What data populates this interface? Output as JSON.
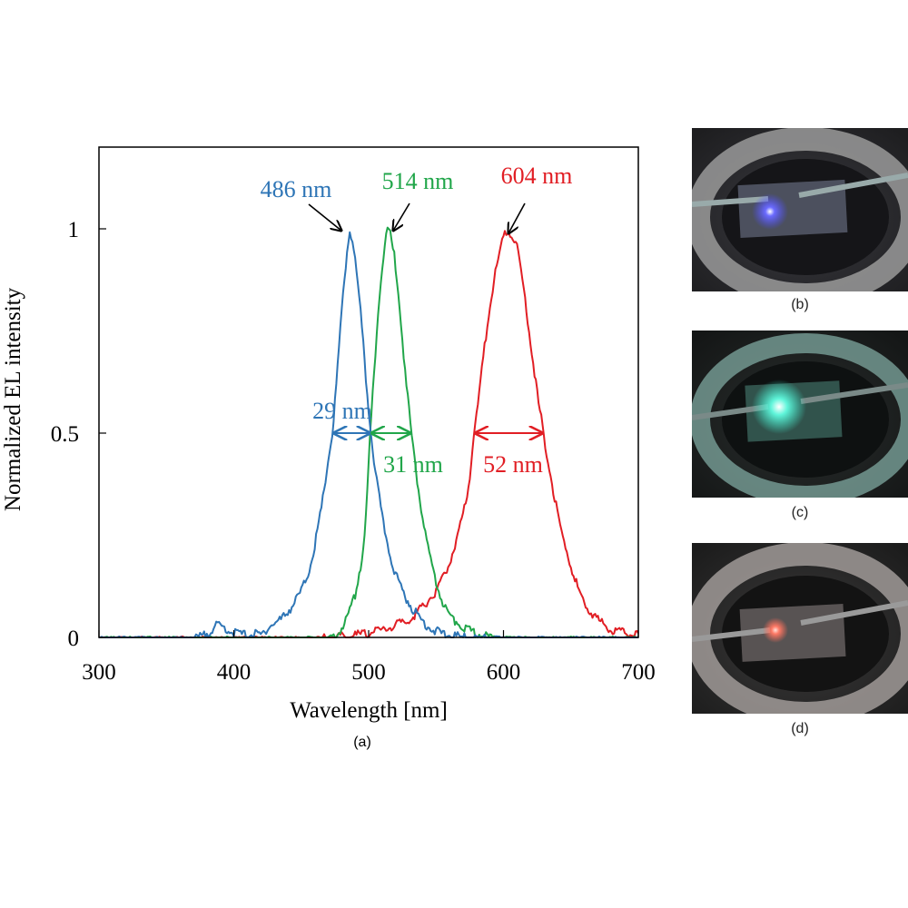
{
  "chart_data": {
    "type": "line",
    "panel_label": "(a)",
    "xlabel": "Wavelength [nm]",
    "ylabel": "Normalized EL intensity",
    "xlim": [
      300,
      700
    ],
    "ylim": [
      0,
      1.2
    ],
    "xticks": [
      {
        "value": 300,
        "label": "300"
      },
      {
        "value": 400,
        "label": "400"
      },
      {
        "value": 500,
        "label": "500"
      },
      {
        "value": 600,
        "label": "600"
      },
      {
        "value": 700,
        "label": "700"
      }
    ],
    "yticks": [
      {
        "value": 0,
        "label": "0"
      },
      {
        "value": 0.5,
        "label": "0.5"
      },
      {
        "value": 1,
        "label": "1"
      }
    ],
    "grid": false,
    "legend": "none",
    "series": [
      {
        "color": "#2e75b6",
        "peak_label": "486 nm",
        "fwhm_label": "29 nm",
        "peak": 486,
        "fwhm": [
          473,
          502
        ],
        "points": [
          [
            300,
            0
          ],
          [
            370,
            0
          ],
          [
            378,
            0.01
          ],
          [
            383,
            0.025
          ],
          [
            388,
            0.035
          ],
          [
            393,
            0.03
          ],
          [
            398,
            0.02
          ],
          [
            405,
            0.015
          ],
          [
            410,
            0.01
          ],
          [
            415,
            0.015
          ],
          [
            420,
            0.01
          ],
          [
            425,
            0.03
          ],
          [
            430,
            0.04
          ],
          [
            435,
            0.05
          ],
          [
            440,
            0.07
          ],
          [
            445,
            0.09
          ],
          [
            450,
            0.12
          ],
          [
            455,
            0.16
          ],
          [
            460,
            0.23
          ],
          [
            465,
            0.32
          ],
          [
            470,
            0.44
          ],
          [
            473,
            0.5
          ],
          [
            476,
            0.62
          ],
          [
            479,
            0.76
          ],
          [
            482,
            0.88
          ],
          [
            484,
            0.95
          ],
          [
            486,
            1.0
          ],
          [
            488,
            0.98
          ],
          [
            491,
            0.9
          ],
          [
            494,
            0.8
          ],
          [
            497,
            0.68
          ],
          [
            500,
            0.56
          ],
          [
            502,
            0.5
          ],
          [
            505,
            0.41
          ],
          [
            510,
            0.3
          ],
          [
            515,
            0.22
          ],
          [
            520,
            0.16
          ],
          [
            525,
            0.12
          ],
          [
            530,
            0.09
          ],
          [
            535,
            0.065
          ],
          [
            540,
            0.045
          ],
          [
            545,
            0.032
          ],
          [
            550,
            0.02
          ],
          [
            560,
            0.01
          ],
          [
            570,
            0.005
          ],
          [
            600,
            0
          ],
          [
            700,
            0
          ]
        ]
      },
      {
        "color": "#21a64a",
        "peak_label": "514 nm",
        "fwhm_label": "31 nm",
        "peak": 514,
        "fwhm": [
          501,
          532
        ],
        "points": [
          [
            300,
            0
          ],
          [
            470,
            0
          ],
          [
            475,
            0.01
          ],
          [
            480,
            0.03
          ],
          [
            485,
            0.06
          ],
          [
            490,
            0.11
          ],
          [
            495,
            0.2
          ],
          [
            498,
            0.3
          ],
          [
            501,
            0.5
          ],
          [
            504,
            0.65
          ],
          [
            507,
            0.8
          ],
          [
            510,
            0.91
          ],
          [
            512,
            0.97
          ],
          [
            514,
            1.0
          ],
          [
            516,
            0.99
          ],
          [
            519,
            0.94
          ],
          [
            522,
            0.85
          ],
          [
            525,
            0.74
          ],
          [
            528,
            0.62
          ],
          [
            532,
            0.5
          ],
          [
            536,
            0.39
          ],
          [
            540,
            0.3
          ],
          [
            545,
            0.21
          ],
          [
            550,
            0.14
          ],
          [
            555,
            0.09
          ],
          [
            560,
            0.06
          ],
          [
            570,
            0.03
          ],
          [
            580,
            0.015
          ],
          [
            590,
            0.005
          ],
          [
            600,
            0
          ],
          [
            700,
            0
          ]
        ]
      },
      {
        "color": "#e11e24",
        "peak_label": "604 nm",
        "fwhm_label": "52 nm",
        "peak": 604,
        "fwhm": [
          578,
          630
        ],
        "points": [
          [
            300,
            0
          ],
          [
            460,
            0
          ],
          [
            470,
            0.003
          ],
          [
            480,
            0.008
          ],
          [
            490,
            0.012
          ],
          [
            500,
            0.016
          ],
          [
            510,
            0.025
          ],
          [
            520,
            0.035
          ],
          [
            530,
            0.05
          ],
          [
            540,
            0.08
          ],
          [
            550,
            0.12
          ],
          [
            560,
            0.19
          ],
          [
            570,
            0.3
          ],
          [
            575,
            0.4
          ],
          [
            578,
            0.5
          ],
          [
            582,
            0.6
          ],
          [
            586,
            0.72
          ],
          [
            590,
            0.82
          ],
          [
            594,
            0.9
          ],
          [
            598,
            0.96
          ],
          [
            601,
            0.99
          ],
          [
            604,
            1.0
          ],
          [
            607,
            0.99
          ],
          [
            610,
            0.96
          ],
          [
            614,
            0.88
          ],
          [
            618,
            0.78
          ],
          [
            622,
            0.68
          ],
          [
            626,
            0.58
          ],
          [
            630,
            0.5
          ],
          [
            635,
            0.4
          ],
          [
            640,
            0.31
          ],
          [
            645,
            0.24
          ],
          [
            650,
            0.18
          ],
          [
            655,
            0.13
          ],
          [
            660,
            0.09
          ],
          [
            665,
            0.07
          ],
          [
            670,
            0.05
          ],
          [
            675,
            0.035
          ],
          [
            680,
            0.025
          ],
          [
            690,
            0.015
          ],
          [
            700,
            0.01
          ]
        ]
      }
    ]
  },
  "photos": [
    {
      "label": "(b)",
      "glow_color": "#4a4aff"
    },
    {
      "label": "(c)",
      "glow_color": "#3ff0d0"
    },
    {
      "label": "(d)",
      "glow_color": "#ff6a55"
    }
  ]
}
